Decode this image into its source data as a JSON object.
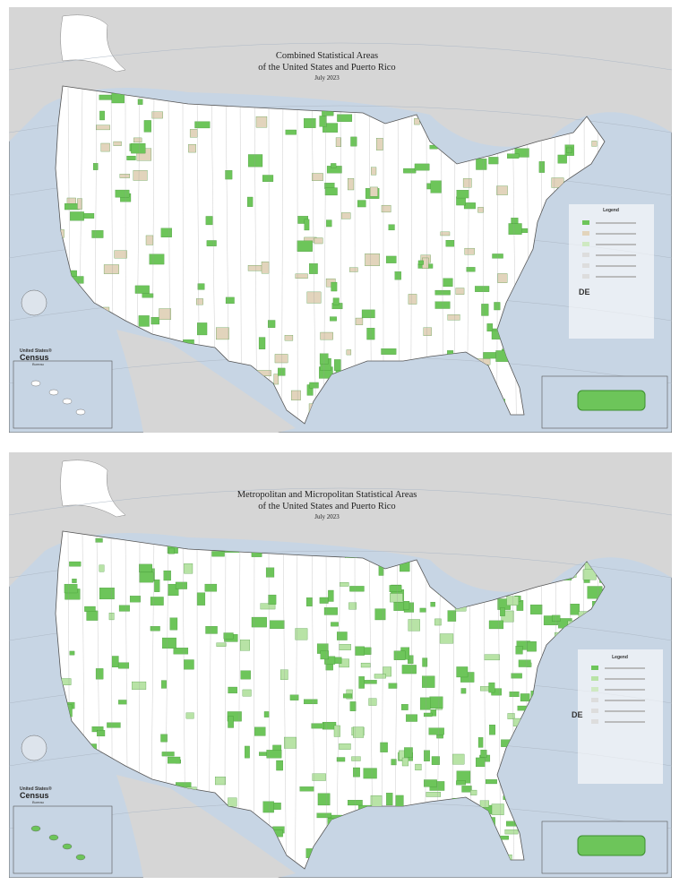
{
  "maps": [
    {
      "title": [
        "Combined Statistical Areas",
        "of the United States and Puerto Rico"
      ],
      "date": "July 2023",
      "legend": "Legend",
      "state_label": "DE",
      "logo": [
        "United States®",
        "Census",
        "Bureau"
      ]
    },
    {
      "title": [
        "Metropolitan and Micropolitan Statistical Areas",
        "of the United States and Puerto Rico"
      ],
      "date": "July 2023",
      "legend": "Legend",
      "state_label": "DE",
      "logo": [
        "United States®",
        "Census",
        "Bureau"
      ]
    }
  ]
}
